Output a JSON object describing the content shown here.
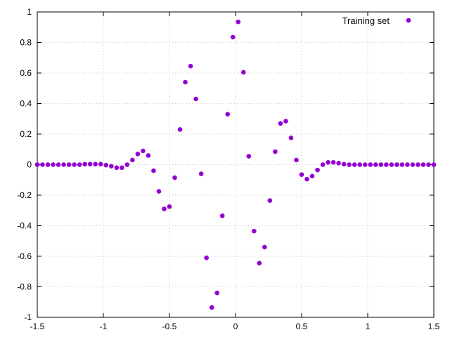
{
  "chart_data": {
    "type": "scatter",
    "title": "",
    "xlabel": "",
    "ylabel": "",
    "xlim": [
      -1.5,
      1.5
    ],
    "ylim": [
      -1,
      1
    ],
    "grid": true,
    "legend_position": "top-right",
    "x_ticks": [
      -1.5,
      -1,
      -0.5,
      0,
      0.5,
      1,
      1.5
    ],
    "x_tick_labels": [
      "-1.5",
      "-1",
      "-0.5",
      "0",
      "0.5",
      "1",
      "1.5"
    ],
    "y_ticks": [
      -1,
      -0.8,
      -0.6,
      -0.4,
      -0.2,
      0,
      0.2,
      0.4,
      0.6,
      0.8,
      1
    ],
    "y_tick_labels": [
      "-1",
      "-0.8",
      "-0.6",
      "-0.4",
      "-0.2",
      "0",
      "0.2",
      "0.4",
      "0.6",
      "0.8",
      "1"
    ],
    "series": [
      {
        "name": "Training set",
        "color": "#9400d3",
        "points": [
          [
            -1.5,
            0.0
          ],
          [
            -1.46,
            0.0
          ],
          [
            -1.42,
            0.0
          ],
          [
            -1.38,
            0.0
          ],
          [
            -1.34,
            0.0
          ],
          [
            -1.3,
            0.0
          ],
          [
            -1.26,
            0.0
          ],
          [
            -1.22,
            0.0
          ],
          [
            -1.18,
            0.0
          ],
          [
            -1.14,
            0.003
          ],
          [
            -1.1,
            0.003
          ],
          [
            -1.06,
            0.003
          ],
          [
            -1.02,
            0.003
          ],
          [
            -0.98,
            -0.003
          ],
          [
            -0.94,
            -0.01
          ],
          [
            -0.9,
            -0.02
          ],
          [
            -0.86,
            -0.02
          ],
          [
            -0.82,
            0.0
          ],
          [
            -0.78,
            0.03
          ],
          [
            -0.74,
            0.07
          ],
          [
            -0.7,
            0.09
          ],
          [
            -0.66,
            0.06
          ],
          [
            -0.62,
            -0.04
          ],
          [
            -0.58,
            -0.175
          ],
          [
            -0.54,
            -0.29
          ],
          [
            -0.5,
            -0.275
          ],
          [
            -0.46,
            -0.085
          ],
          [
            -0.42,
            0.23
          ],
          [
            -0.38,
            0.54
          ],
          [
            -0.34,
            0.645
          ],
          [
            -0.3,
            0.43
          ],
          [
            -0.26,
            -0.06
          ],
          [
            -0.22,
            -0.61
          ],
          [
            -0.18,
            -0.935
          ],
          [
            -0.14,
            -0.84
          ],
          [
            -0.1,
            -0.335
          ],
          [
            -0.06,
            0.33
          ],
          [
            -0.02,
            0.835
          ],
          [
            0.02,
            0.935
          ],
          [
            0.06,
            0.605
          ],
          [
            0.1,
            0.055
          ],
          [
            0.14,
            -0.435
          ],
          [
            0.18,
            -0.645
          ],
          [
            0.22,
            -0.54
          ],
          [
            0.26,
            -0.235
          ],
          [
            0.3,
            0.085
          ],
          [
            0.34,
            0.27
          ],
          [
            0.38,
            0.285
          ],
          [
            0.42,
            0.175
          ],
          [
            0.46,
            0.03
          ],
          [
            0.5,
            -0.065
          ],
          [
            0.54,
            -0.095
          ],
          [
            0.58,
            -0.075
          ],
          [
            0.62,
            -0.035
          ],
          [
            0.66,
            0.0
          ],
          [
            0.7,
            0.015
          ],
          [
            0.74,
            0.015
          ],
          [
            0.78,
            0.01
          ],
          [
            0.82,
            0.003
          ],
          [
            0.86,
            0.0
          ],
          [
            0.9,
            0.0
          ],
          [
            0.94,
            0.0
          ],
          [
            0.98,
            0.0
          ],
          [
            1.02,
            0.0
          ],
          [
            1.06,
            0.0
          ],
          [
            1.1,
            0.0
          ],
          [
            1.14,
            0.0
          ],
          [
            1.18,
            0.0
          ],
          [
            1.22,
            0.0
          ],
          [
            1.26,
            0.0
          ],
          [
            1.3,
            0.0
          ],
          [
            1.34,
            0.0
          ],
          [
            1.38,
            0.0
          ],
          [
            1.42,
            0.0
          ],
          [
            1.46,
            0.0
          ],
          [
            1.5,
            0.0
          ]
        ]
      }
    ]
  }
}
